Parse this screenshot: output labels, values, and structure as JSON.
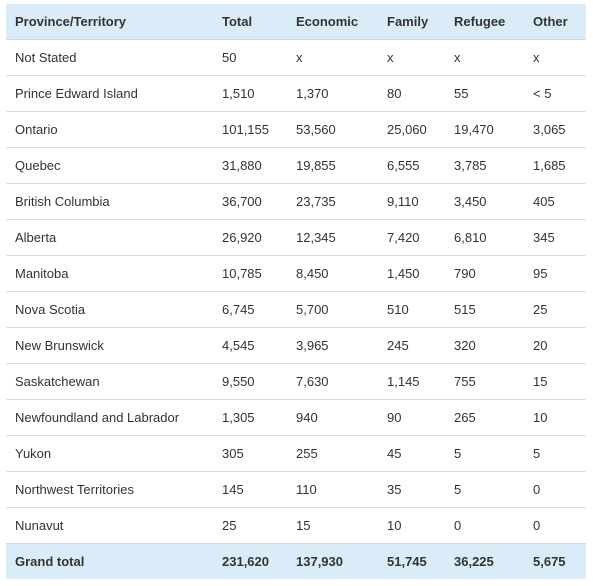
{
  "table": {
    "headers": [
      "Province/Territory",
      "Total",
      "Economic",
      "Family",
      "Refugee",
      "Other"
    ],
    "rows": [
      [
        "Not Stated",
        "50",
        "x",
        "x",
        "x",
        "x"
      ],
      [
        "Prince Edward Island",
        "1,510",
        "1,370",
        "80",
        "55",
        "< 5"
      ],
      [
        "Ontario",
        "101,155",
        "53,560",
        "25,060",
        "19,470",
        "3,065"
      ],
      [
        "Quebec",
        "31,880",
        "19,855",
        "6,555",
        "3,785",
        "1,685"
      ],
      [
        "British Columbia",
        "36,700",
        "23,735",
        "9,110",
        "3,450",
        "405"
      ],
      [
        "Alberta",
        "26,920",
        "12,345",
        "7,420",
        "6,810",
        "345"
      ],
      [
        "Manitoba",
        "10,785",
        "8,450",
        "1,450",
        "790",
        "95"
      ],
      [
        "Nova Scotia",
        "6,745",
        "5,700",
        "510",
        "515",
        "25"
      ],
      [
        "New Brunswick",
        "4,545",
        "3,965",
        "245",
        "320",
        "20"
      ],
      [
        "Saskatchewan",
        "9,550",
        "7,630",
        "1,145",
        "755",
        "15"
      ],
      [
        "Newfoundland and Labrador",
        "1,305",
        "940",
        "90",
        "265",
        "10"
      ],
      [
        "Yukon",
        "305",
        "255",
        "45",
        "5",
        "5"
      ],
      [
        "Northwest Territories",
        "145",
        "110",
        "35",
        "5",
        "0"
      ],
      [
        "Nunavut",
        "25",
        "15",
        "10",
        "0",
        "0"
      ]
    ],
    "total": [
      "Grand total",
      "231,620",
      "137,930",
      "51,745",
      "36,225",
      "5,675"
    ]
  },
  "colors": {
    "header_bg": "#d9ecf7",
    "row_border": "#dddddd",
    "text": "#333333"
  }
}
